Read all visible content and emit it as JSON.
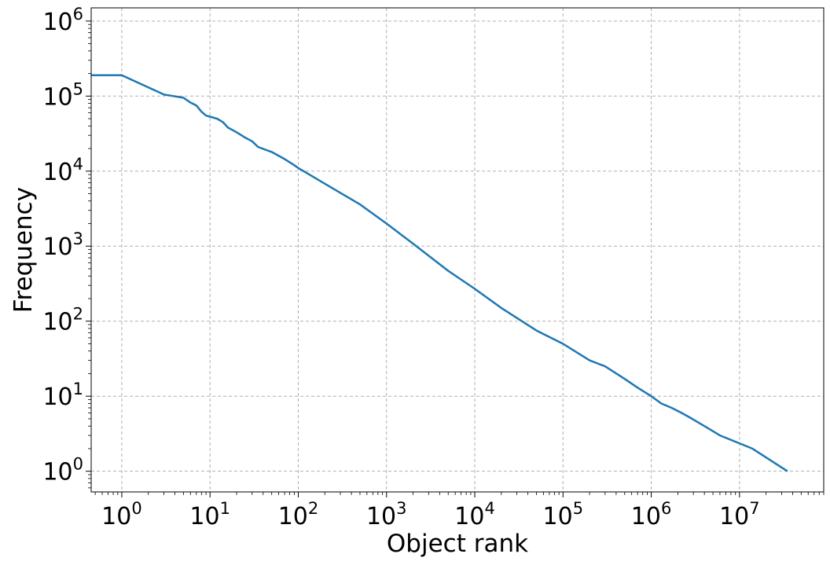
{
  "chart_data": {
    "type": "line",
    "xlabel": "Object rank",
    "ylabel": "Frequency",
    "xscale": "log",
    "yscale": "log",
    "xlim": [
      0.45,
      90000000
    ],
    "ylim": [
      0.53,
      1500000
    ],
    "grid": true,
    "line_color": "#1f77b4",
    "x_ticks": [
      {
        "base": "10",
        "exp": "0",
        "value": 1
      },
      {
        "base": "10",
        "exp": "1",
        "value": 10
      },
      {
        "base": "10",
        "exp": "2",
        "value": 100
      },
      {
        "base": "10",
        "exp": "3",
        "value": 1000
      },
      {
        "base": "10",
        "exp": "4",
        "value": 10000
      },
      {
        "base": "10",
        "exp": "5",
        "value": 100000
      },
      {
        "base": "10",
        "exp": "6",
        "value": 1000000
      },
      {
        "base": "10",
        "exp": "7",
        "value": 10000000
      }
    ],
    "y_ticks": [
      {
        "base": "10",
        "exp": "0",
        "value": 1
      },
      {
        "base": "10",
        "exp": "1",
        "value": 10
      },
      {
        "base": "10",
        "exp": "2",
        "value": 100
      },
      {
        "base": "10",
        "exp": "3",
        "value": 1000
      },
      {
        "base": "10",
        "exp": "4",
        "value": 10000
      },
      {
        "base": "10",
        "exp": "5",
        "value": 100000
      },
      {
        "base": "10",
        "exp": "6",
        "value": 1000000
      }
    ],
    "series": [
      {
        "x": [
          0.45,
          1,
          3,
          5,
          6,
          7,
          8,
          9,
          12,
          14,
          16,
          20,
          25,
          30,
          35,
          50,
          70,
          90,
          100,
          200,
          500,
          1000,
          2000,
          5000,
          10000,
          20000,
          50000,
          100000,
          200000,
          300000,
          500000,
          700000,
          1000000,
          1300000,
          1300000,
          1700000,
          1700000,
          2200000,
          2200000,
          2900000,
          2900000,
          4000000,
          4000000,
          6000000,
          6000000,
          14000000,
          14000000,
          35000000
        ],
        "y": [
          190000,
          190000,
          105000,
          95000,
          82000,
          75000,
          62000,
          55000,
          50000,
          45000,
          38000,
          33000,
          28000,
          25000,
          21000,
          18000,
          14500,
          12000,
          11000,
          6800,
          3600,
          2000,
          1080,
          470,
          270,
          150,
          75,
          50,
          30,
          25,
          17,
          13,
          10,
          8,
          8,
          7,
          7,
          6,
          6,
          5,
          5,
          4,
          4,
          3,
          3,
          2,
          2,
          1
        ]
      }
    ]
  }
}
